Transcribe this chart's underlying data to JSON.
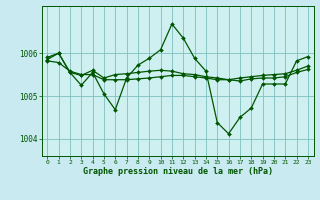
{
  "title": "Graphe pression niveau de la mer (hPa)",
  "background_color": "#c8eaf0",
  "plot_bg_color": "#cef0f0",
  "grid_color": "#7fbfbf",
  "line_color": "#005500",
  "xlim": [
    -0.5,
    23.5
  ],
  "ylim": [
    1003.6,
    1007.1
  ],
  "yticks": [
    1004,
    1005,
    1006
  ],
  "xticks": [
    0,
    1,
    2,
    3,
    4,
    5,
    6,
    7,
    8,
    9,
    10,
    11,
    12,
    13,
    14,
    15,
    16,
    17,
    18,
    19,
    20,
    21,
    22,
    23
  ],
  "series_volatile": [
    1005.85,
    1006.0,
    1005.55,
    1005.25,
    1005.55,
    1005.05,
    1004.68,
    1005.42,
    1005.72,
    1005.88,
    1006.08,
    1006.68,
    1006.35,
    1005.88,
    1005.58,
    1004.38,
    1004.12,
    1004.5,
    1004.72,
    1005.28,
    1005.28,
    1005.28,
    1005.82,
    1005.92
  ],
  "series_flat1": [
    1005.9,
    1006.0,
    1005.55,
    1005.48,
    1005.6,
    1005.42,
    1005.5,
    1005.52,
    1005.55,
    1005.58,
    1005.6,
    1005.58,
    1005.52,
    1005.5,
    1005.45,
    1005.42,
    1005.38,
    1005.35,
    1005.4,
    1005.42,
    1005.42,
    1005.45,
    1005.55,
    1005.62
  ],
  "series_trend": [
    1005.82,
    1005.78,
    1005.58,
    1005.5,
    1005.5,
    1005.38,
    1005.38,
    1005.38,
    1005.4,
    1005.42,
    1005.45,
    1005.48,
    1005.48,
    1005.45,
    1005.42,
    1005.38,
    1005.38,
    1005.42,
    1005.45,
    1005.48,
    1005.5,
    1005.52,
    1005.6,
    1005.7
  ]
}
